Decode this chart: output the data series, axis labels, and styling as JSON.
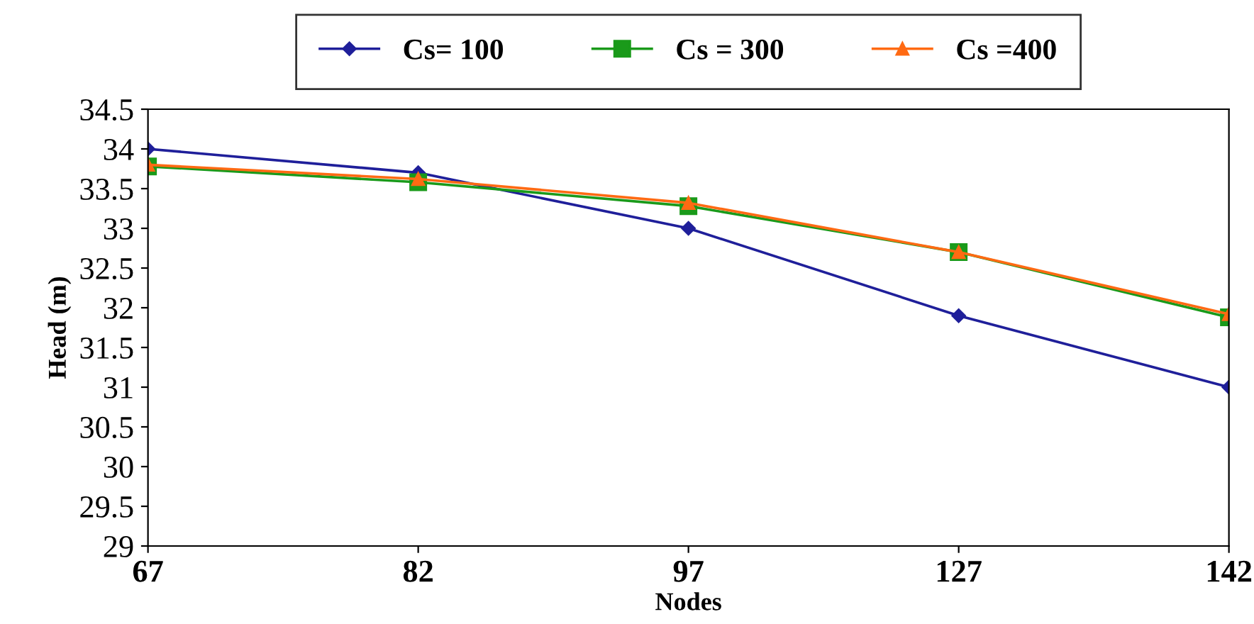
{
  "chart_data": {
    "type": "line",
    "xlabel": "Nodes",
    "ylabel": "Head (m)",
    "categories": [
      "67",
      "82",
      "97",
      "127",
      "142"
    ],
    "ylim": [
      29,
      34.5
    ],
    "yticks": [
      29,
      29.5,
      30,
      30.5,
      31,
      31.5,
      32,
      32.5,
      33,
      33.5,
      34,
      34.5
    ],
    "legend": "top",
    "grid": false,
    "series": [
      {
        "name": "Cs= 100",
        "color": "#1f1f9a",
        "marker": "diamond",
        "values": [
          34.0,
          33.7,
          33.0,
          31.9,
          31.0
        ]
      },
      {
        "name": "Cs = 300",
        "color": "#1a9a1a",
        "marker": "square",
        "values": [
          33.78,
          33.58,
          33.28,
          32.7,
          31.88
        ]
      },
      {
        "name": "Cs =400",
        "color": "#ff6a13",
        "marker": "triangle",
        "values": [
          33.8,
          33.62,
          33.32,
          32.7,
          31.92
        ]
      }
    ]
  }
}
